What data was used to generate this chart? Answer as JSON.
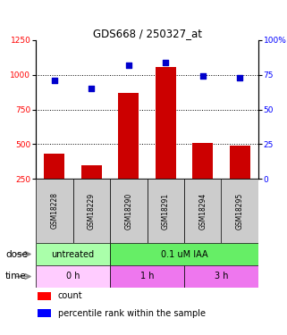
{
  "title": "GDS668 / 250327_at",
  "samples": [
    "GSM18228",
    "GSM18229",
    "GSM18290",
    "GSM18291",
    "GSM18294",
    "GSM18295"
  ],
  "bar_values": [
    430,
    350,
    870,
    1055,
    505,
    490
  ],
  "scatter_values": [
    71,
    65,
    82,
    84,
    74,
    73
  ],
  "bar_color": "#cc0000",
  "scatter_color": "#0000cc",
  "ylim_left": [
    250,
    1250
  ],
  "ylim_right": [
    0,
    100
  ],
  "yticks_left": [
    250,
    500,
    750,
    1000,
    1250
  ],
  "yticks_right": [
    0,
    25,
    50,
    75,
    100
  ],
  "ytick_labels_right": [
    "0",
    "25",
    "50",
    "75",
    "100%"
  ],
  "dose_labels": [
    {
      "text": "untreated",
      "start": 0,
      "end": 2,
      "color": "#aaffaa"
    },
    {
      "text": "0.1 uM IAA",
      "start": 2,
      "end": 6,
      "color": "#66ee66"
    }
  ],
  "time_labels": [
    {
      "text": "0 h",
      "start": 0,
      "end": 2,
      "color": "#ffccff"
    },
    {
      "text": "1 h",
      "start": 2,
      "end": 4,
      "color": "#ee77ee"
    },
    {
      "text": "3 h",
      "start": 4,
      "end": 6,
      "color": "#ee77ee"
    }
  ],
  "dose_row_label": "dose",
  "time_row_label": "time",
  "legend_count_label": "count",
  "legend_pct_label": "percentile rank within the sample",
  "grid_dotted_values": [
    500,
    750,
    1000
  ],
  "background_color": "#ffffff",
  "label_area_color": "#cccccc"
}
